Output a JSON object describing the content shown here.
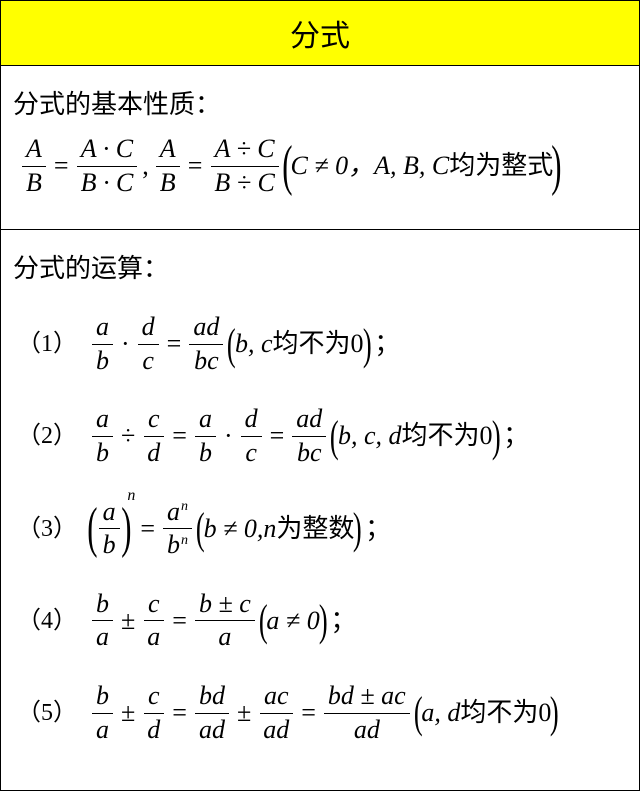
{
  "colors": {
    "title_bg": "#ffff00",
    "border": "#000000",
    "text": "#000000",
    "page_bg": "#ffffff"
  },
  "fonts": {
    "cjk": "SimSun",
    "latin": "Times New Roman",
    "heading_size_pt": 26,
    "formula_size_pt": 26,
    "title_size_pt": 30
  },
  "title": "分式",
  "section1": {
    "heading": "分式的基本性质：",
    "frac1": {
      "top": "A",
      "bot": "B"
    },
    "eq": "=",
    "frac2": {
      "top": "A · C",
      "bot": "B · C"
    },
    "comma": ",",
    "frac3": {
      "top": "A",
      "bot": "B"
    },
    "frac4": {
      "top": "A ÷ C",
      "bot": "B ÷ C"
    },
    "cond_inner": "C ≠ 0，",
    "cond_vars": "A, B, C",
    "cond_tail": "均为整式"
  },
  "section2": {
    "heading": "分式的运算：",
    "rules": [
      {
        "label": "（1）",
        "parts": {
          "f1": {
            "top": "a",
            "bot": "b"
          },
          "dot": "·",
          "f2": {
            "top": "d",
            "bot": "c"
          },
          "eq": "=",
          "f3": {
            "top": "ad",
            "bot": "bc"
          },
          "cond_vars": "b, c",
          "cond_tail": "均不为0"
        }
      },
      {
        "label": "（2）",
        "parts": {
          "f1": {
            "top": "a",
            "bot": "b"
          },
          "div": "÷",
          "f2": {
            "top": "c",
            "bot": "d"
          },
          "eq": "=",
          "f3": {
            "top": "a",
            "bot": "b"
          },
          "dot": "·",
          "f4": {
            "top": "d",
            "bot": "c"
          },
          "f5": {
            "top": "ad",
            "bot": "bc"
          },
          "cond_vars": "b, c, d",
          "cond_tail": "均不为0"
        }
      },
      {
        "label": "（3）",
        "parts": {
          "base": {
            "top": "a",
            "bot": "b"
          },
          "exp": "n",
          "eq": "=",
          "res": {
            "top": "a",
            "bot": "b",
            "sup": "n"
          },
          "cond1": "b ≠ 0,",
          "cond_var": "n",
          "cond_tail": "为整数"
        }
      },
      {
        "label": "（4）",
        "parts": {
          "f1": {
            "top": "b",
            "bot": "a"
          },
          "pm": "±",
          "f2": {
            "top": "c",
            "bot": "a"
          },
          "eq": "=",
          "f3": {
            "top": "b ± c",
            "bot": "a"
          },
          "cond": "a ≠ 0"
        }
      },
      {
        "label": "（5）",
        "parts": {
          "f1": {
            "top": "b",
            "bot": "a"
          },
          "pm": "±",
          "f2": {
            "top": "c",
            "bot": "d"
          },
          "eq": "=",
          "f3": {
            "top": "bd",
            "bot": "ad"
          },
          "f4": {
            "top": "ac",
            "bot": "ad"
          },
          "f5": {
            "top": "bd ± ac",
            "bot": "ad"
          },
          "cond_vars": "a, d",
          "cond_tail": "均不为0"
        }
      }
    ]
  }
}
